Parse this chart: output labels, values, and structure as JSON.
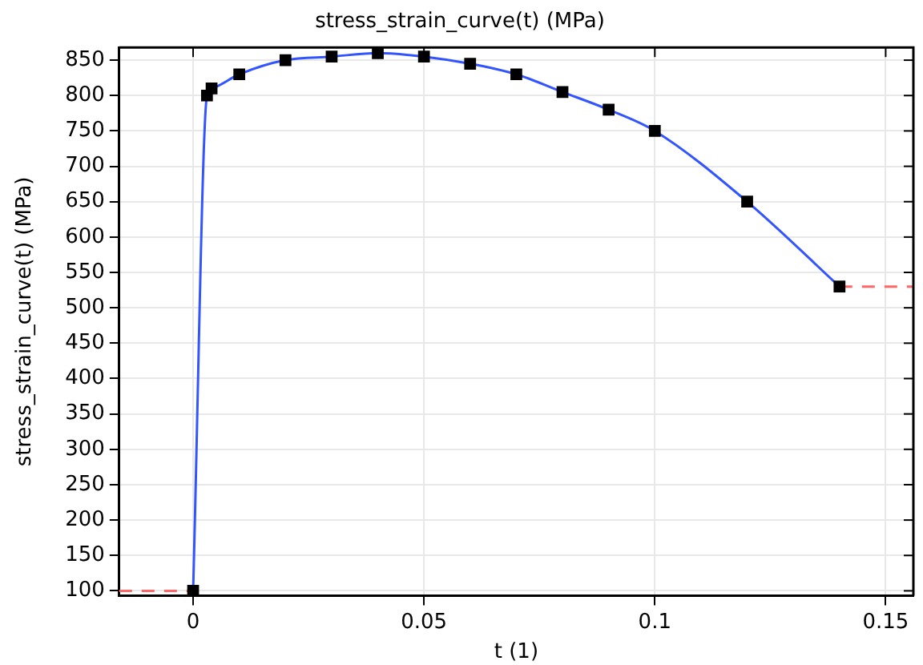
{
  "chart_data": {
    "type": "line",
    "title": "stress_strain_curve(t) (MPa)",
    "xlabel": "t (1)",
    "ylabel": "stress_strain_curve(t) (MPa)",
    "series": [
      {
        "type": "line",
        "color": "#ff6666",
        "line_style": "dashed",
        "marker": "none",
        "x": [
          -0.016,
          0
        ],
        "values": [
          100,
          100
        ]
      },
      {
        "type": "line",
        "color": "#ff6666",
        "line_style": "dashed",
        "marker": "none",
        "x": [
          0.14,
          0.156
        ],
        "values": [
          530,
          530
        ]
      },
      {
        "type": "line",
        "color": "#3355ff",
        "line_style": "solid",
        "marker": "none",
        "x": [
          0,
          0.003,
          0.004,
          0.01,
          0.02,
          0.03,
          0.04,
          0.05,
          0.06,
          0.07,
          0.08,
          0.09,
          0.1,
          0.12,
          0.14
        ],
        "values": [
          100,
          800,
          810,
          830,
          850,
          855,
          860,
          855,
          845,
          830,
          805,
          780,
          750,
          650,
          530
        ]
      },
      {
        "type": "scatter",
        "color": "#000000",
        "marker": "square",
        "x": [
          0,
          0.003,
          0.004,
          0.01,
          0.02,
          0.03,
          0.04,
          0.05,
          0.06,
          0.07,
          0.08,
          0.09,
          0.1,
          0.12,
          0.14
        ],
        "values": [
          100,
          800,
          810,
          830,
          850,
          855,
          860,
          855,
          845,
          830,
          805,
          780,
          750,
          650,
          530
        ]
      }
    ],
    "xlim": [
      -0.016,
      0.156
    ],
    "xticks": [
      0,
      0.05,
      0.1,
      0.15
    ],
    "ylim": [
      93,
      868
    ],
    "yticks": [
      100,
      150,
      200,
      250,
      300,
      350,
      400,
      450,
      500,
      550,
      600,
      650,
      700,
      750,
      800,
      850
    ],
    "grid": true,
    "legend": false
  }
}
